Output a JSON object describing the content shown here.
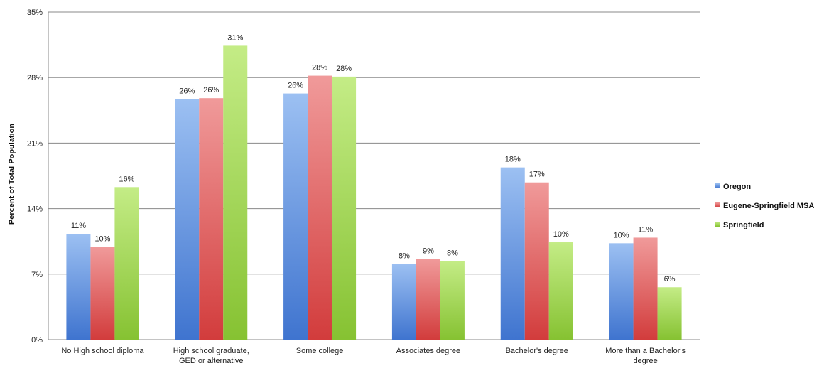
{
  "chart_data": {
    "type": "bar",
    "title": "",
    "xlabel": "",
    "ylabel": "Percent of Total Population",
    "ylim": [
      0,
      35
    ],
    "yticks": [
      "0%",
      "7%",
      "14%",
      "21%",
      "28%",
      "35%"
    ],
    "ytick_values": [
      0,
      7,
      14,
      21,
      28,
      35
    ],
    "grid": true,
    "legend_position": "right",
    "categories": [
      [
        "No High school diploma"
      ],
      [
        "High school graduate,",
        "GED or alternative"
      ],
      [
        "Some college"
      ],
      [
        "Associates degree"
      ],
      [
        "Bachelor's degree"
      ],
      [
        "More than a Bachelor's",
        "degree"
      ]
    ],
    "series": [
      {
        "name": "Oregon",
        "color": "#6f9be0",
        "values": [
          11.3,
          25.7,
          26.3,
          8.1,
          18.4,
          10.3
        ],
        "labels": [
          "11%",
          "26%",
          "26%",
          "8%",
          "18%",
          "10%"
        ]
      },
      {
        "name": "Eugene-Springfield MSA",
        "color": "#e06a6a",
        "values": [
          9.9,
          25.8,
          28.2,
          8.6,
          16.8,
          10.9
        ],
        "labels": [
          "10%",
          "26%",
          "28%",
          "9%",
          "17%",
          "11%"
        ]
      },
      {
        "name": "Springfield",
        "color": "#a6d85a",
        "values": [
          16.3,
          31.4,
          28.1,
          8.4,
          10.4,
          5.6
        ],
        "labels": [
          "16%",
          "31%",
          "28%",
          "8%",
          "10%",
          "6%"
        ]
      }
    ]
  }
}
